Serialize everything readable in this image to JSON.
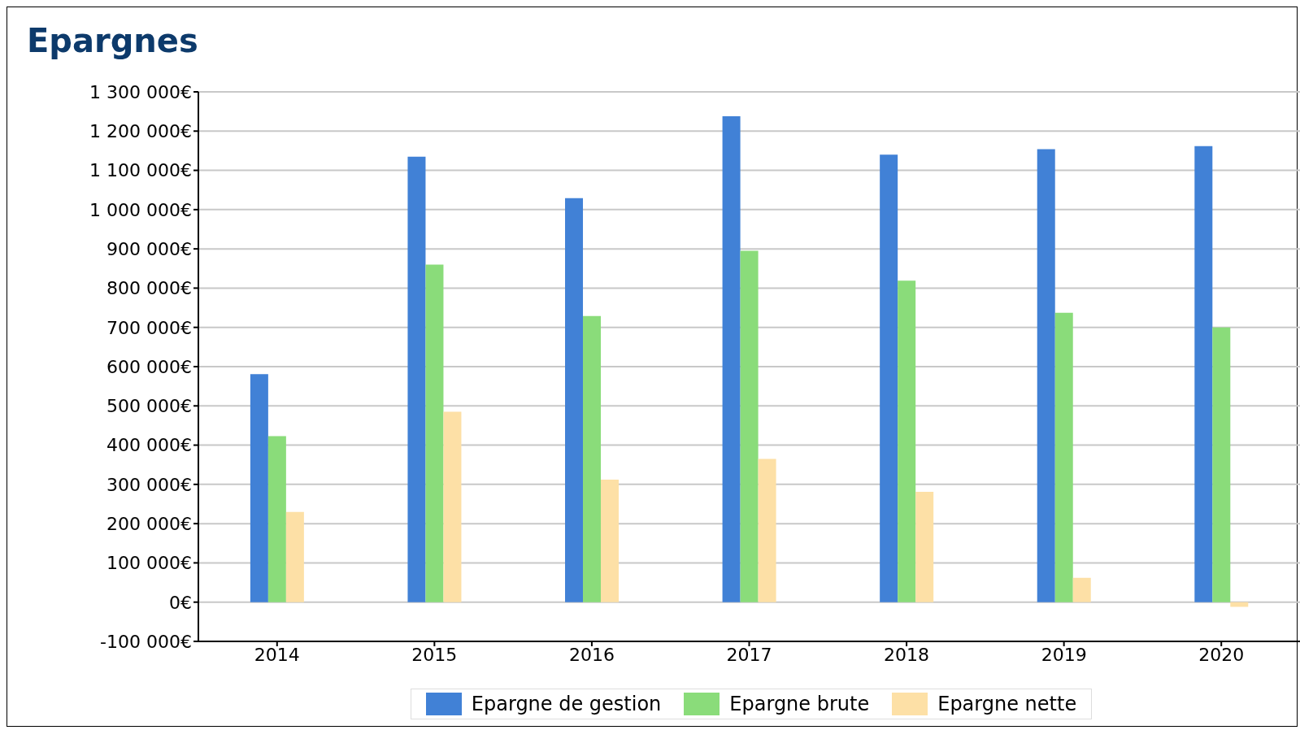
{
  "chart_data": {
    "type": "bar",
    "title": "Epargnes",
    "categories": [
      "2014",
      "2015",
      "2016",
      "2017",
      "2018",
      "2019",
      "2020"
    ],
    "series": [
      {
        "name": "Epargne de gestion",
        "color": "#4181d6",
        "values": [
          581000,
          1135000,
          1029000,
          1238000,
          1140000,
          1154000,
          1162000
        ]
      },
      {
        "name": "Epargne brute",
        "color": "#8adc7a",
        "values": [
          423000,
          860000,
          729000,
          895000,
          819000,
          737000,
          700000
        ]
      },
      {
        "name": "Epargne nette",
        "color": "#fde0a6",
        "values": [
          230000,
          485000,
          312000,
          365000,
          281000,
          62000,
          -12000
        ]
      }
    ],
    "ylim": [
      -100000,
      1300000
    ],
    "yticks": [
      {
        "value": -100000,
        "label": "-100 000€"
      },
      {
        "value": 0,
        "label": "0€"
      },
      {
        "value": 100000,
        "label": "100 000€"
      },
      {
        "value": 200000,
        "label": "200 000€"
      },
      {
        "value": 300000,
        "label": "300 000€"
      },
      {
        "value": 400000,
        "label": "400 000€"
      },
      {
        "value": 500000,
        "label": "500 000€"
      },
      {
        "value": 600000,
        "label": "600 000€"
      },
      {
        "value": 700000,
        "label": "700 000€"
      },
      {
        "value": 800000,
        "label": "800 000€"
      },
      {
        "value": 900000,
        "label": "900 000€"
      },
      {
        "value": 1000000,
        "label": "1 000 000€"
      },
      {
        "value": 1100000,
        "label": "1 100 000€"
      },
      {
        "value": 1200000,
        "label": "1 200 000€"
      },
      {
        "value": 1300000,
        "label": "1 300 000€"
      }
    ],
    "grid": "y",
    "legend": "bottom"
  }
}
